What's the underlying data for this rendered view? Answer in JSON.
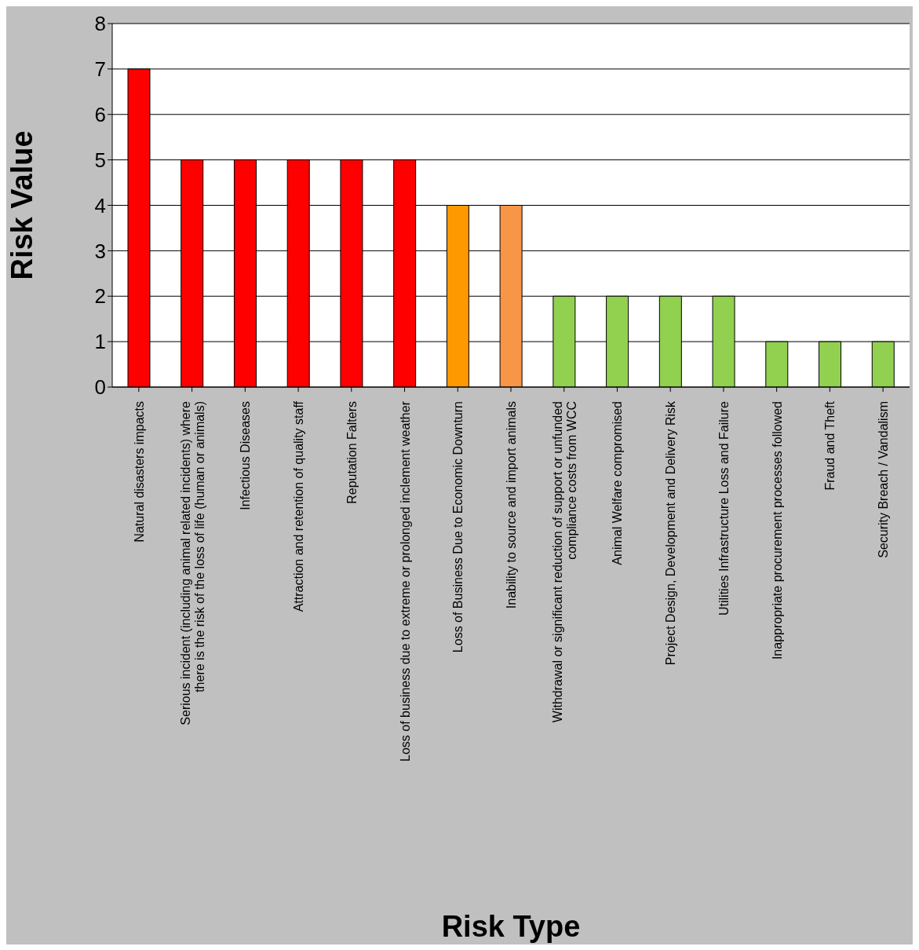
{
  "chart_data": {
    "type": "bar",
    "xlabel": "Risk Type",
    "ylabel": "Risk Value",
    "categories": [
      "Natural disasters impacts",
      "Serious incident (including animal related incidents) where there is the risk of the loss of life (human or animals)",
      "Infectious Diseases",
      "Attraction and retention of quality staff",
      "Reputation Falters",
      "Loss of business due to extreme or prolonged inclement weather",
      "Loss of Business Due to Economic Downturn",
      "Inability to source and import animals",
      "Withdrawal or significant reduction of support or unfunded compliance costs from WCC",
      "Animal Welfare compromised",
      "Project Design, Development and Delivery Risk",
      "Utilities Infrastructure Loss and Failure",
      "Inappropriate procurement processes followed",
      "Fraud and Theft",
      "Security Breach / Vandalism"
    ],
    "values": [
      7,
      5,
      5,
      5,
      5,
      5,
      4,
      4,
      2,
      2,
      2,
      2,
      1,
      1,
      1
    ],
    "colors": [
      "#ff0000",
      "#ff0000",
      "#ff0000",
      "#ff0000",
      "#ff0000",
      "#ff0000",
      "#ff9900",
      "#f79646",
      "#92d050",
      "#92d050",
      "#92d050",
      "#92d050",
      "#92d050",
      "#92d050",
      "#92d050"
    ],
    "ylim": [
      0,
      8
    ],
    "yticks": [
      0,
      1,
      2,
      3,
      4,
      5,
      6,
      7,
      8
    ],
    "grid": "y",
    "legend": false
  }
}
